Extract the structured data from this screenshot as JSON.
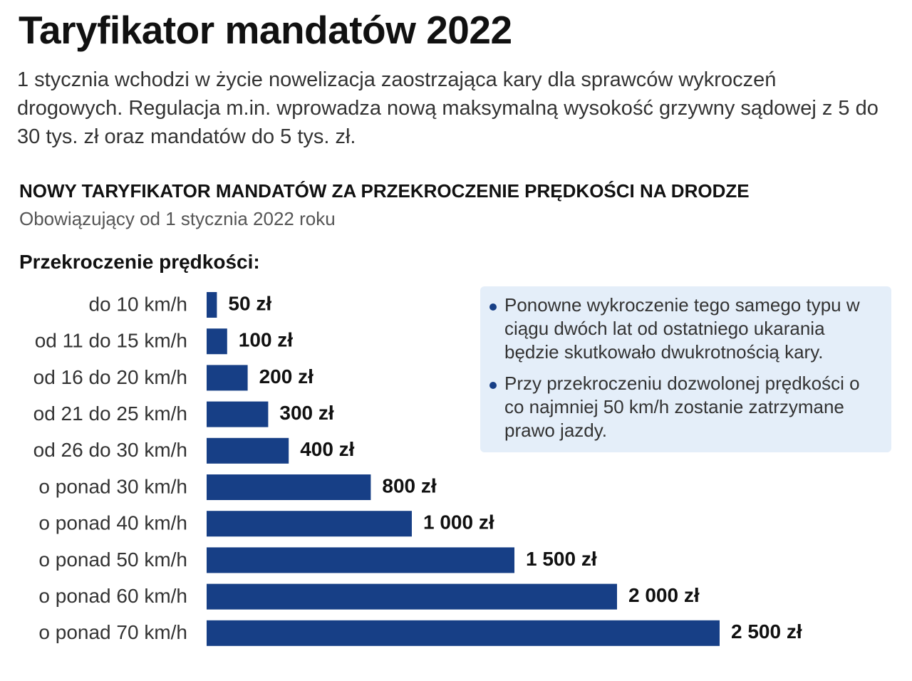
{
  "chart_data": {
    "type": "bar",
    "orientation": "horizontal",
    "title": "Taryfikator mandatów 2022",
    "description": "1 stycznia wchodzi w życie nowelizacja zaostrzająca kary dla sprawców wykroczeń drogowych. Regulacja m.in. wprowadza nową maksymalną wysokość grzywny sądowej z 5 do 30 tys. zł oraz mandatów do 5 tys. zł.",
    "chart_title": "NOWY TARYFIKATOR MANDATÓW ZA PRZEKROCZENIE PRĘDKOŚCI NA DRODZE",
    "chart_subtitle": "Obowiązujący od 1 stycznia 2022 roku",
    "y_label": "Przekroczenie prędkości:",
    "categories": [
      "do 10 km/h",
      "od 11 do 15 km/h",
      "od 16 do 20 km/h",
      "od 21 do 25 km/h",
      "od 26 do 30 km/h",
      "o ponad 30 km/h",
      "o ponad 40 km/h",
      "o ponad 50 km/h",
      "o ponad 60 km/h",
      "o ponad 70 km/h"
    ],
    "values": [
      50,
      100,
      200,
      300,
      400,
      800,
      1000,
      1500,
      2000,
      2500
    ],
    "value_labels": [
      "50 zł",
      "100 zł",
      "200 zł",
      "300 zł",
      "400 zł",
      "800 zł",
      "1 000 zł",
      "1 500 zł",
      "2 000 zł",
      "2 500 zł"
    ],
    "color": "#173f86",
    "notes": [
      "Ponowne wykroczenie tego samego typu w ciągu dwóch lat od ostatniego ukarania będzie skutkowało dwukrotnością kary.",
      "Przy przekroczeniu dozwolonej prędkości o co najmniej 50 km/h zostanie zatrzymane prawo jazdy."
    ]
  }
}
